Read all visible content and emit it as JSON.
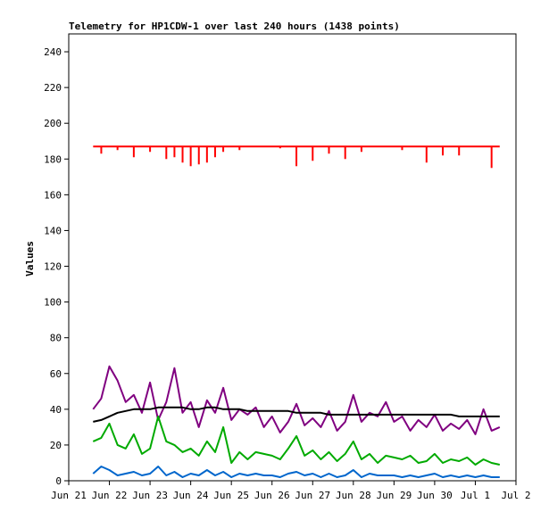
{
  "chart_data": {
    "type": "line",
    "title": "Telemetry for HP1CDW-1 over last 240 hours (1438 points)",
    "xlabel": "",
    "ylabel": "Values",
    "ylim": [
      0,
      250
    ],
    "yticks": [
      0,
      20,
      40,
      60,
      80,
      100,
      120,
      140,
      160,
      180,
      200,
      220,
      240
    ],
    "xlim": [
      "Jun 21",
      "Jul 2"
    ],
    "xticks": [
      "Jun 21",
      "Jun 22",
      "Jun 23",
      "Jun 24",
      "Jun 25",
      "Jun 26",
      "Jun 27",
      "Jun 28",
      "Jun 29",
      "Jun 30",
      "Jul 1",
      "Jul 2"
    ],
    "grid": false,
    "legend": "none",
    "series": [
      {
        "color": "#ff0000",
        "style": "spiky",
        "baseline": 187,
        "x": [
          "Jun 21.6",
          "Jun 21.8",
          "Jun 22.0",
          "Jun 22.2",
          "Jun 22.4",
          "Jun 22.6",
          "Jun 22.8",
          "Jun 23.0",
          "Jun 23.2",
          "Jun 23.4",
          "Jun 23.6",
          "Jun 23.8",
          "Jun 24.0",
          "Jun 24.2",
          "Jun 24.4",
          "Jun 24.6",
          "Jun 24.8",
          "Jun 25.0",
          "Jun 25.2",
          "Jun 25.4",
          "Jun 25.6",
          "Jun 25.8",
          "Jun 26.0",
          "Jun 26.2",
          "Jun 26.4",
          "Jun 26.6",
          "Jun 26.8",
          "Jun 27.0",
          "Jun 27.2",
          "Jun 27.4",
          "Jun 27.6",
          "Jun 27.8",
          "Jun 28.0",
          "Jun 28.2",
          "Jun 28.4",
          "Jun 28.6",
          "Jun 28.8",
          "Jun 29.0",
          "Jun 29.2",
          "Jun 29.4",
          "Jun 29.6",
          "Jun 29.8",
          "Jun 30.0",
          "Jun 30.2",
          "Jun 30.4",
          "Jun 30.6",
          "Jun 30.8",
          "Jul 1.0",
          "Jul 1.2",
          "Jul 1.4",
          "Jul 1.6"
        ],
        "values": [
          187,
          183,
          187,
          185,
          187,
          181,
          187,
          184,
          187,
          180,
          181,
          178,
          176,
          177,
          178,
          181,
          184,
          187,
          185,
          187,
          187,
          187,
          187,
          186,
          187,
          176,
          187,
          179,
          187,
          183,
          187,
          180,
          187,
          184,
          187,
          187,
          187,
          187,
          185,
          187,
          187,
          178,
          187,
          182,
          187,
          182,
          187,
          187,
          187,
          175,
          187
        ]
      },
      {
        "color": "#800080",
        "x": [
          "Jun 21.6",
          "Jun 21.8",
          "Jun 22.0",
          "Jun 22.2",
          "Jun 22.4",
          "Jun 22.6",
          "Jun 22.8",
          "Jun 23.0",
          "Jun 23.2",
          "Jun 23.4",
          "Jun 23.6",
          "Jun 23.8",
          "Jun 24.0",
          "Jun 24.2",
          "Jun 24.4",
          "Jun 24.6",
          "Jun 24.8",
          "Jun 25.0",
          "Jun 25.2",
          "Jun 25.4",
          "Jun 25.6",
          "Jun 25.8",
          "Jun 26.0",
          "Jun 26.2",
          "Jun 26.4",
          "Jun 26.6",
          "Jun 26.8",
          "Jun 27.0",
          "Jun 27.2",
          "Jun 27.4",
          "Jun 27.6",
          "Jun 27.8",
          "Jun 28.0",
          "Jun 28.2",
          "Jun 28.4",
          "Jun 28.6",
          "Jun 28.8",
          "Jun 29.0",
          "Jun 29.2",
          "Jun 29.4",
          "Jun 29.6",
          "Jun 29.8",
          "Jun 30.0",
          "Jun 30.2",
          "Jun 30.4",
          "Jun 30.6",
          "Jun 30.8",
          "Jul 1.0",
          "Jul 1.2",
          "Jul 1.4",
          "Jul 1.6"
        ],
        "values": [
          40,
          46,
          64,
          56,
          44,
          48,
          38,
          55,
          34,
          44,
          63,
          38,
          44,
          30,
          45,
          38,
          52,
          34,
          40,
          37,
          41,
          30,
          36,
          27,
          33,
          43,
          31,
          35,
          30,
          39,
          28,
          33,
          48,
          33,
          38,
          36,
          44,
          33,
          36,
          28,
          34,
          30,
          37,
          28,
          32,
          29,
          34,
          26,
          40,
          28,
          30
        ]
      },
      {
        "color": "#000000",
        "x": [
          "Jun 21.6",
          "Jun 21.8",
          "Jun 22.0",
          "Jun 22.2",
          "Jun 22.4",
          "Jun 22.6",
          "Jun 22.8",
          "Jun 23.0",
          "Jun 23.2",
          "Jun 23.4",
          "Jun 23.6",
          "Jun 23.8",
          "Jun 24.0",
          "Jun 24.2",
          "Jun 24.4",
          "Jun 24.6",
          "Jun 24.8",
          "Jun 25.0",
          "Jun 25.2",
          "Jun 25.4",
          "Jun 25.6",
          "Jun 25.8",
          "Jun 26.0",
          "Jun 26.2",
          "Jun 26.4",
          "Jun 26.6",
          "Jun 26.8",
          "Jun 27.0",
          "Jun 27.2",
          "Jun 27.4",
          "Jun 27.6",
          "Jun 27.8",
          "Jun 28.0",
          "Jun 28.2",
          "Jun 28.4",
          "Jun 28.6",
          "Jun 28.8",
          "Jun 29.0",
          "Jun 29.2",
          "Jun 29.4",
          "Jun 29.6",
          "Jun 29.8",
          "Jun 30.0",
          "Jun 30.2",
          "Jun 30.4",
          "Jun 30.6",
          "Jun 30.8",
          "Jul 1.0",
          "Jul 1.2",
          "Jul 1.4",
          "Jul 1.6"
        ],
        "values": [
          33,
          34,
          36,
          38,
          39,
          40,
          40,
          40,
          41,
          41,
          41,
          41,
          40,
          40,
          41,
          41,
          40,
          40,
          40,
          39,
          39,
          39,
          39,
          39,
          39,
          38,
          38,
          38,
          38,
          37,
          37,
          37,
          37,
          37,
          37,
          37,
          37,
          37,
          37,
          37,
          37,
          37,
          37,
          37,
          37,
          36,
          36,
          36,
          36,
          36,
          36
        ]
      },
      {
        "color": "#00aa00",
        "x": [
          "Jun 21.6",
          "Jun 21.8",
          "Jun 22.0",
          "Jun 22.2",
          "Jun 22.4",
          "Jun 22.6",
          "Jun 22.8",
          "Jun 23.0",
          "Jun 23.2",
          "Jun 23.4",
          "Jun 23.6",
          "Jun 23.8",
          "Jun 24.0",
          "Jun 24.2",
          "Jun 24.4",
          "Jun 24.6",
          "Jun 24.8",
          "Jun 25.0",
          "Jun 25.2",
          "Jun 25.4",
          "Jun 25.6",
          "Jun 25.8",
          "Jun 26.0",
          "Jun 26.2",
          "Jun 26.4",
          "Jun 26.6",
          "Jun 26.8",
          "Jun 27.0",
          "Jun 27.2",
          "Jun 27.4",
          "Jun 27.6",
          "Jun 27.8",
          "Jun 28.0",
          "Jun 28.2",
          "Jun 28.4",
          "Jun 28.6",
          "Jun 28.8",
          "Jun 29.0",
          "Jun 29.2",
          "Jun 29.4",
          "Jun 29.6",
          "Jun 29.8",
          "Jun 30.0",
          "Jun 30.2",
          "Jun 30.4",
          "Jun 30.6",
          "Jun 30.8",
          "Jul 1.0",
          "Jul 1.2",
          "Jul 1.4",
          "Jul 1.6"
        ],
        "values": [
          22,
          24,
          32,
          20,
          18,
          26,
          15,
          18,
          36,
          22,
          20,
          16,
          18,
          14,
          22,
          16,
          30,
          10,
          16,
          12,
          16,
          15,
          14,
          12,
          18,
          25,
          14,
          17,
          12,
          16,
          11,
          15,
          22,
          12,
          15,
          10,
          14,
          13,
          12,
          14,
          10,
          11,
          15,
          10,
          12,
          11,
          13,
          9,
          12,
          10,
          9
        ]
      },
      {
        "color": "#0066cc",
        "x": [
          "Jun 21.6",
          "Jun 21.8",
          "Jun 22.0",
          "Jun 22.2",
          "Jun 22.4",
          "Jun 22.6",
          "Jun 22.8",
          "Jun 23.0",
          "Jun 23.2",
          "Jun 23.4",
          "Jun 23.6",
          "Jun 23.8",
          "Jun 24.0",
          "Jun 24.2",
          "Jun 24.4",
          "Jun 24.6",
          "Jun 24.8",
          "Jun 25.0",
          "Jun 25.2",
          "Jun 25.4",
          "Jun 25.6",
          "Jun 25.8",
          "Jun 26.0",
          "Jun 26.2",
          "Jun 26.4",
          "Jun 26.6",
          "Jun 26.8",
          "Jun 27.0",
          "Jun 27.2",
          "Jun 27.4",
          "Jun 27.6",
          "Jun 27.8",
          "Jun 28.0",
          "Jun 28.2",
          "Jun 28.4",
          "Jun 28.6",
          "Jun 28.8",
          "Jun 29.0",
          "Jun 29.2",
          "Jun 29.4",
          "Jun 29.6",
          "Jun 29.8",
          "Jun 30.0",
          "Jun 30.2",
          "Jun 30.4",
          "Jun 30.6",
          "Jun 30.8",
          "Jul 1.0",
          "Jul 1.2",
          "Jul 1.4",
          "Jul 1.6"
        ],
        "values": [
          4,
          8,
          6,
          3,
          4,
          5,
          3,
          4,
          8,
          3,
          5,
          2,
          4,
          3,
          6,
          3,
          5,
          2,
          4,
          3,
          4,
          3,
          3,
          2,
          4,
          5,
          3,
          4,
          2,
          4,
          2,
          3,
          6,
          2,
          4,
          3,
          3,
          3,
          2,
          3,
          2,
          3,
          4,
          2,
          3,
          2,
          3,
          2,
          3,
          2,
          2
        ]
      }
    ]
  }
}
